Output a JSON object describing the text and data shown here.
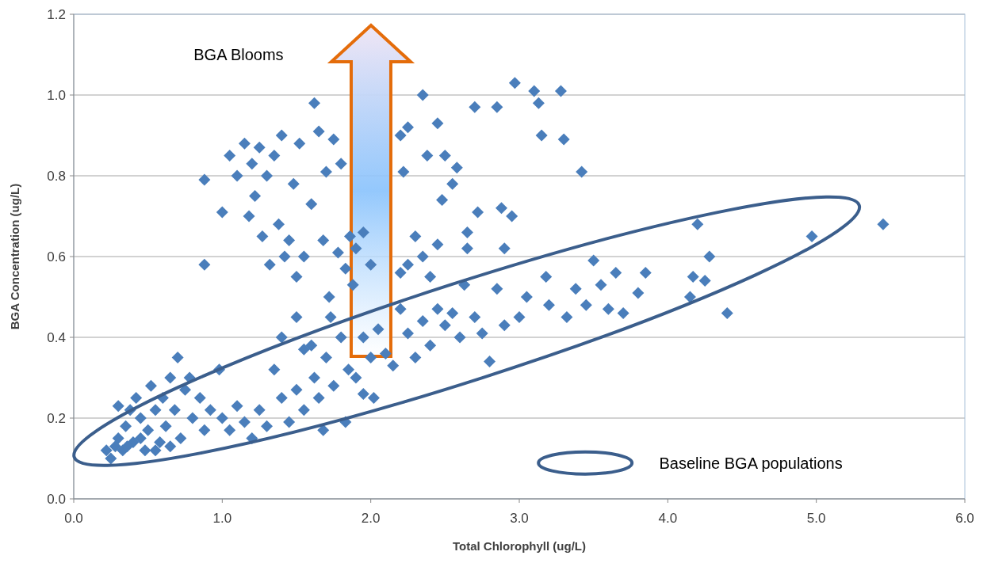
{
  "chart_data": {
    "type": "scatter",
    "xlabel": "Total Chlorophyll (ug/L)",
    "ylabel": "BGA Concentration (ug/L)",
    "annotations": [
      "BGA Blooms",
      "Baseline BGA populations"
    ],
    "xlim": [
      0,
      6
    ],
    "ylim": [
      0,
      1.2
    ],
    "xticks": [
      {
        "value": 0,
        "label": "0.0"
      },
      {
        "value": 1,
        "label": "1.0"
      },
      {
        "value": 2,
        "label": "2.0"
      },
      {
        "value": 3,
        "label": "3.0"
      },
      {
        "value": 4,
        "label": "4.0"
      },
      {
        "value": 5,
        "label": "5.0"
      },
      {
        "value": 6,
        "label": "6.0"
      }
    ],
    "yticks": [
      {
        "value": 0,
        "label": "0.0"
      },
      {
        "value": 0.2,
        "label": "0.2"
      },
      {
        "value": 0.4,
        "label": "0.4"
      },
      {
        "value": 0.6,
        "label": "0.6"
      },
      {
        "value": 0.8,
        "label": "0.8"
      },
      {
        "value": 1,
        "label": "1.0"
      },
      {
        "value": 1.2,
        "label": "1.2"
      }
    ],
    "grid": "y",
    "marker": "diamond",
    "series": [
      {
        "color": "#4a7ebb",
        "x": [
          0.22,
          0.25,
          0.28,
          0.3,
          0.33,
          0.35,
          0.38,
          0.4,
          0.42,
          0.45,
          0.48,
          0.5,
          0.52,
          0.55,
          0.58,
          0.6,
          0.62,
          0.65,
          0.68,
          0.7,
          0.72,
          0.75,
          0.78,
          0.8,
          0.85,
          0.88,
          0.92,
          0.98,
          0.36,
          0.55,
          0.65,
          0.45,
          0.3,
          1.0,
          1.05,
          1.1,
          1.15,
          1.2,
          1.25,
          1.3,
          1.35,
          1.4,
          1.45,
          1.5,
          1.55,
          1.6,
          1.62,
          1.65,
          1.68,
          1.7,
          1.75,
          1.8,
          1.83,
          1.85,
          1.9,
          1.95,
          2.0,
          2.02,
          2.1,
          2.15,
          1.5,
          1.55,
          1.4,
          1.73,
          1.95,
          2.05,
          0.88,
          0.88,
          1.0,
          1.05,
          1.1,
          1.15,
          1.2,
          1.18,
          1.22,
          1.25,
          1.27,
          1.3,
          1.32,
          1.35,
          1.38,
          1.4,
          1.42,
          1.45,
          1.48,
          1.5,
          1.52,
          1.55,
          1.6,
          1.62,
          1.65,
          1.68,
          1.7,
          1.72,
          1.75,
          1.78,
          1.8,
          1.83,
          1.86,
          1.88,
          1.9,
          1.95,
          2.0,
          2.2,
          2.22,
          2.25,
          2.3,
          2.35,
          2.38,
          2.45,
          2.48,
          2.5,
          2.55,
          2.58,
          2.2,
          2.25,
          2.35,
          2.45,
          2.2,
          2.25,
          2.3,
          2.35,
          2.4,
          2.45,
          2.5,
          2.55,
          2.6,
          2.63,
          2.65,
          2.7,
          2.72,
          2.75,
          2.7,
          2.8,
          2.85,
          2.85,
          2.88,
          2.9,
          2.95,
          2.97,
          3.0,
          3.05,
          3.1,
          3.13,
          3.15,
          3.18,
          3.2,
          3.28,
          3.3,
          3.32,
          3.38,
          3.42,
          3.45,
          3.5,
          3.55,
          3.6,
          3.65,
          3.7,
          3.8,
          3.85,
          4.15,
          4.17,
          4.2,
          4.25,
          4.28,
          4.4,
          4.97,
          5.45,
          2.9,
          2.65,
          2.4
        ],
        "values": [
          0.12,
          0.1,
          0.13,
          0.15,
          0.12,
          0.18,
          0.22,
          0.14,
          0.25,
          0.2,
          0.12,
          0.17,
          0.28,
          0.22,
          0.14,
          0.25,
          0.18,
          0.3,
          0.22,
          0.35,
          0.15,
          0.27,
          0.3,
          0.2,
          0.25,
          0.17,
          0.22,
          0.32,
          0.13,
          0.12,
          0.13,
          0.15,
          0.23,
          0.2,
          0.17,
          0.23,
          0.19,
          0.15,
          0.22,
          0.18,
          0.32,
          0.25,
          0.19,
          0.27,
          0.22,
          0.38,
          0.3,
          0.25,
          0.17,
          0.35,
          0.28,
          0.4,
          0.19,
          0.32,
          0.3,
          0.26,
          0.35,
          0.25,
          0.36,
          0.33,
          0.45,
          0.37,
          0.4,
          0.45,
          0.4,
          0.42,
          0.79,
          0.58,
          0.71,
          0.85,
          0.8,
          0.88,
          0.83,
          0.7,
          0.75,
          0.87,
          0.65,
          0.8,
          0.58,
          0.85,
          0.68,
          0.9,
          0.6,
          0.64,
          0.78,
          0.55,
          0.88,
          0.6,
          0.73,
          0.98,
          0.91,
          0.64,
          0.81,
          0.5,
          0.89,
          0.61,
          0.83,
          0.57,
          0.65,
          0.53,
          0.62,
          0.66,
          0.58,
          0.9,
          0.81,
          0.92,
          0.65,
          1.0,
          0.85,
          0.93,
          0.74,
          0.85,
          0.78,
          0.82,
          0.56,
          0.58,
          0.6,
          0.63,
          0.47,
          0.41,
          0.35,
          0.44,
          0.38,
          0.47,
          0.43,
          0.46,
          0.4,
          0.53,
          0.62,
          0.45,
          0.71,
          0.41,
          0.97,
          0.34,
          0.97,
          0.52,
          0.72,
          0.43,
          0.7,
          1.03,
          0.45,
          0.5,
          1.01,
          0.98,
          0.9,
          0.55,
          0.48,
          1.01,
          0.89,
          0.45,
          0.52,
          0.81,
          0.48,
          0.59,
          0.53,
          0.47,
          0.56,
          0.46,
          0.51,
          0.56,
          0.5,
          0.55,
          0.68,
          0.54,
          0.6,
          0.46,
          0.65,
          0.68,
          0.62,
          0.66,
          0.55
        ]
      }
    ]
  }
}
